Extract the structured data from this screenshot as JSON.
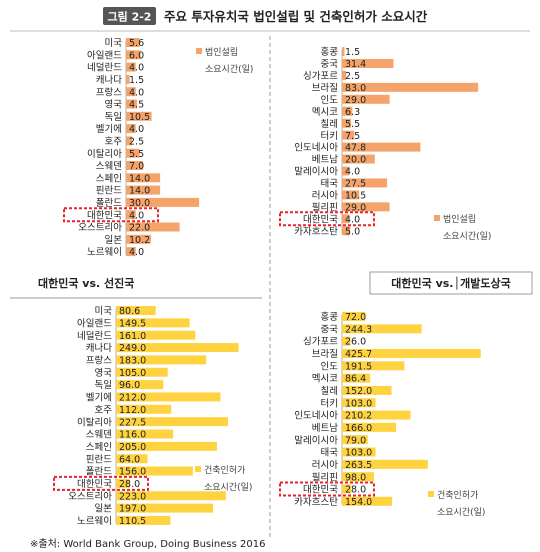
{
  "header": {
    "figure_label": "그림 2-2",
    "title": "주요 투자유치국 법인설립 및 건축인허가 소요시간"
  },
  "section_titles": {
    "advanced": "대한민국 vs. 선진국",
    "developing": "대한민국 vs.│개발도상국"
  },
  "source": "※출처: World Bank Group, Doing Business 2016",
  "colors": {
    "establishment_bar": "#F4A46A",
    "permit_bar": "#FFD340",
    "highlight_box": "#E8232A",
    "header_badge": "#555555",
    "divider": "#9E9E9E"
  },
  "chart_data": [
    {
      "id": "advanced-establishment",
      "type": "bar",
      "orientation": "horizontal",
      "categories": [
        "미국",
        "아일랜드",
        "네덜란드",
        "캐나다",
        "프랑스",
        "영국",
        "독일",
        "벨기에",
        "호주",
        "이탈리아",
        "스웨덴",
        "스페인",
        "핀란드",
        "폴란드",
        "대한민국",
        "오스트리아",
        "일본",
        "노르웨이"
      ],
      "value_labels": [
        "5.6",
        "6.0",
        "4.0",
        "1.5",
        "4.0",
        "4.5",
        "10.5",
        "4.0",
        "2.5",
        "5.5",
        "7.0",
        "14.0",
        "14.0",
        "30.0",
        "4.0",
        "22.0",
        "10.2",
        "4.0"
      ],
      "values": [
        5.6,
        6.0,
        4.0,
        1.5,
        4.0,
        4.5,
        10.5,
        4.0,
        2.5,
        5.5,
        7.0,
        14.0,
        14.0,
        30.0,
        4.0,
        22.0,
        10.2,
        4.0
      ],
      "max": 32,
      "highlight": "대한민국",
      "legend": [
        "법인설립",
        "소요시간(일)"
      ]
    },
    {
      "id": "developing-establishment",
      "type": "bar",
      "orientation": "horizontal",
      "categories": [
        "홍콩",
        "중국",
        "싱가포르",
        "브라질",
        "인도",
        "멕시코",
        "칠레",
        "터키",
        "인도네시아",
        "베트남",
        "말레이시아",
        "태국",
        "러시아",
        "필리핀",
        "대한민국",
        "카자흐스탄"
      ],
      "value_labels": [
        "1.5",
        "31.4",
        "2.5",
        "83.0",
        "29.0",
        "6.3",
        "5.5",
        "7.5",
        "47.8",
        "20.0",
        "4.0",
        "27.5",
        "10.5",
        "29.0",
        "4.0",
        "5.0"
      ],
      "values": [
        1.5,
        31.4,
        2.5,
        83.0,
        29.0,
        6.3,
        5.5,
        7.5,
        47.8,
        20.0,
        4.0,
        27.5,
        10.5,
        29.0,
        4.0,
        5.0
      ],
      "max": 89,
      "highlight": "대한민국",
      "legend": [
        "법인설립",
        "소요시간(일)"
      ]
    },
    {
      "id": "advanced-permit",
      "type": "bar",
      "orientation": "horizontal",
      "categories": [
        "미국",
        "아일랜드",
        "네덜란드",
        "캐나다",
        "프랑스",
        "영국",
        "독일",
        "벨기에",
        "호주",
        "이탈리아",
        "스웨덴",
        "스페인",
        "핀란드",
        "폴란드",
        "대한민국",
        "오스트리아",
        "일본",
        "노르웨이"
      ],
      "value_labels": [
        "80.6",
        "149.5",
        "161.0",
        "249.0",
        "183.0",
        "105.0",
        "96.0",
        "212.0",
        "112.0",
        "227.5",
        "116.0",
        "205.0",
        "64.0",
        "156.0",
        "28.0",
        "223.0",
        "197.0",
        "110.5"
      ],
      "values": [
        80.6,
        149.5,
        161.0,
        249.0,
        183.0,
        105.0,
        96.0,
        212.0,
        112.0,
        227.5,
        116.0,
        205.0,
        64.0,
        156.0,
        28.0,
        223.0,
        197.0,
        110.5
      ],
      "max": 268,
      "highlight": "대한민국",
      "legend": [
        "건축인허가",
        "소요시간(일)"
      ]
    },
    {
      "id": "developing-permit",
      "type": "bar",
      "orientation": "horizontal",
      "categories": [
        "홍콩",
        "중국",
        "싱가포르",
        "브라질",
        "인도",
        "멕시코",
        "칠레",
        "터키",
        "인도네시아",
        "베트남",
        "말레이시아",
        "태국",
        "러시아",
        "필리핀",
        "대한민국",
        "카자흐스탄"
      ],
      "value_labels": [
        "72.0",
        "244.3",
        "26.0",
        "425.7",
        "191.5",
        "86.4",
        "152.0",
        "103.0",
        "210.2",
        "166.0",
        "79.0",
        "103.0",
        "263.5",
        "98.0",
        "28.0",
        "154.0"
      ],
      "values": [
        72.0,
        244.3,
        26.0,
        425.7,
        191.5,
        86.4,
        152.0,
        103.0,
        210.2,
        166.0,
        79.0,
        103.0,
        263.5,
        98.0,
        28.0,
        154.0
      ],
      "max": 448,
      "highlight": "대한민국",
      "legend": [
        "건축인허가",
        "소요시간(일)"
      ]
    }
  ]
}
